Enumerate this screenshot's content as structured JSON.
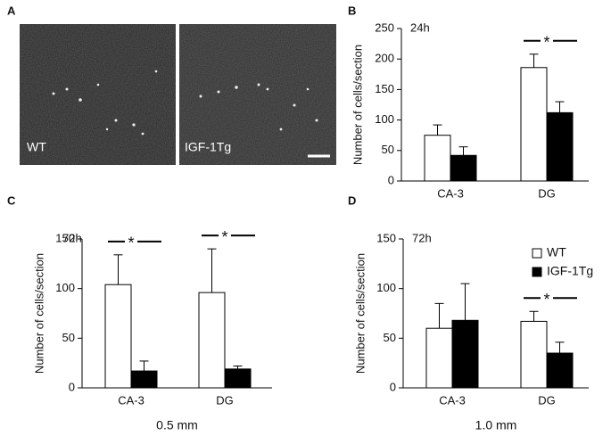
{
  "panel_labels": [
    "A",
    "B",
    "C",
    "D"
  ],
  "image_panel": {
    "labels": [
      "WT",
      "IGF-1Tg"
    ]
  },
  "chart_data": [
    {
      "type": "bar",
      "title": "24h",
      "ylabel": "Number of cells/section",
      "categories": [
        "CA-3",
        "DG"
      ],
      "series": [
        {
          "color": "#ffffff",
          "values": [
            75,
            186
          ],
          "errors": [
            17,
            22
          ]
        },
        {
          "color": "#000000",
          "values": [
            42,
            112
          ],
          "errors": [
            14,
            18
          ]
        }
      ],
      "significance": [
        null,
        "*"
      ],
      "ylim": [
        0,
        250
      ],
      "yticks": [
        0,
        50,
        100,
        150,
        200,
        250
      ]
    },
    {
      "type": "bar",
      "title": "72h",
      "ylabel": "Number of cells/section",
      "xlabel": "0.5 mm",
      "categories": [
        "CA-3",
        "DG"
      ],
      "series": [
        {
          "color": "#ffffff",
          "values": [
            104,
            96
          ],
          "errors": [
            30,
            44
          ]
        },
        {
          "color": "#000000",
          "values": [
            17,
            19
          ],
          "errors": [
            10,
            3
          ]
        }
      ],
      "significance": [
        "*",
        "*"
      ],
      "ylim": [
        0,
        150
      ],
      "yticks": [
        0,
        50,
        100,
        150
      ]
    },
    {
      "type": "bar",
      "title": "72h",
      "ylabel": "Number of cells/section",
      "xlabel": "1.0 mm",
      "categories": [
        "CA-3",
        "DG"
      ],
      "series": [
        {
          "name": "WT",
          "color": "#ffffff",
          "values": [
            60,
            67
          ],
          "errors": [
            25,
            10
          ]
        },
        {
          "name": "IGF-1Tg",
          "color": "#000000",
          "values": [
            68,
            35
          ],
          "errors": [
            37,
            11
          ]
        }
      ],
      "significance": [
        null,
        "*"
      ],
      "legend": "upper right",
      "ylim": [
        0,
        150
      ],
      "yticks": [
        0,
        50,
        100,
        150
      ]
    }
  ]
}
